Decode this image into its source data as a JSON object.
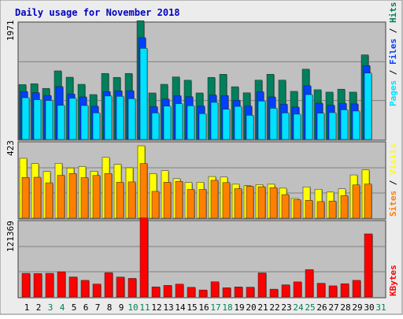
{
  "chart_data": {
    "type": "bar",
    "title": "Daily usage for November 2018",
    "colors": {
      "frame": "#ececec",
      "panel": "#c0c0c0",
      "title": "#0000c0",
      "hits": "#00805c",
      "files": "#0040ff",
      "pages": "#00e0ff",
      "visits": "#ffff00",
      "sites": "#ff8000",
      "kbytes": "#ff0000",
      "weekend_day": "#00805c",
      "weekday": "#000000"
    },
    "days": [
      "1",
      "2",
      "3",
      "4",
      "5",
      "6",
      "7",
      "8",
      "9",
      "10",
      "11",
      "12",
      "13",
      "14",
      "15",
      "16",
      "17",
      "18",
      "19",
      "20",
      "21",
      "22",
      "23",
      "24",
      "25",
      "26",
      "27",
      "28",
      "29",
      "30",
      "31"
    ],
    "weekend_days": [
      "3",
      "4",
      "10",
      "11",
      "17",
      "18",
      "24",
      "25",
      "31"
    ],
    "panels": [
      {
        "id": "usage",
        "ymax_label": "1971",
        "ymax": 1971,
        "series": [
          {
            "name": "Hits",
            "values": [
              927,
              942,
              863,
              1159,
              1052,
              932,
              759,
              1116,
              1049,
              1116,
              2007,
              786,
              932,
              1057,
              1001,
              786,
              1049,
              1102,
              891,
              788,
              1002,
              1102,
              1003,
              813,
              1188,
              840,
              800,
              850,
              800,
              1430
            ]
          },
          {
            "name": "Files",
            "values": [
              810,
              791,
              744,
              893,
              767,
              719,
              561,
              809,
              822,
              824,
              1719,
              554,
              683,
              739,
              723,
              565,
              751,
              743,
              661,
              564,
              805,
              719,
              597,
              547,
              907,
              614,
              578,
              610,
              600,
              1248
            ]
          },
          {
            "name": "Pages",
            "values": [
              705,
              671,
              658,
              577,
              695,
              573,
              448,
              734,
              729,
              689,
              1540,
              447,
              563,
              605,
              569,
              435,
              627,
              511,
              558,
              408,
              648,
              527,
              447,
              427,
              758,
              444,
              453,
              500,
              480,
              1122
            ]
          }
        ],
        "legend": [
          "Pages",
          "Files",
          "Hits"
        ]
      },
      {
        "id": "visitors",
        "ymax_label": "423",
        "ymax": 423,
        "series": [
          {
            "name": "Visits",
            "values": [
              335,
              305,
              261,
              307,
              281,
              289,
              263,
              340,
              301,
              282,
              405,
              249,
              266,
              221,
              200,
              201,
              233,
              230,
              190,
              182,
              188,
              190,
              168,
              110,
              175,
              162,
              146,
              164,
              242,
              270
            ]
          },
          {
            "name": "Sites",
            "values": [
              228,
              229,
              198,
              240,
              250,
              227,
              239,
              250,
              201,
              203,
              306,
              150,
              201,
              206,
              161,
              161,
              212,
              199,
              165,
              179,
              176,
              171,
              132,
              103,
              100,
              93,
              96,
              126,
              186,
              191
            ]
          }
        ],
        "legend": [
          "Sites",
          "Visits"
        ]
      },
      {
        "id": "kbytes",
        "ymax_label": "121369",
        "ymax": 121369,
        "series": [
          {
            "name": "KBytes",
            "values": [
              37900,
              37600,
              37900,
              40400,
              32100,
              26700,
              20700,
              39000,
              31900,
              29800,
              126800,
              16200,
              18600,
              20600,
              15500,
              11200,
              24400,
              14800,
              16100,
              15700,
              38600,
              12500,
              19500,
              24200,
              44000,
              22000,
              17800,
              21300,
              26700,
              101200
            ]
          }
        ],
        "legend": [
          "KBytes"
        ]
      }
    ]
  }
}
